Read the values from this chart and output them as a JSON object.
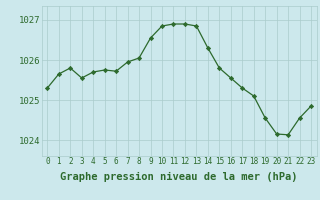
{
  "x": [
    0,
    1,
    2,
    3,
    4,
    5,
    6,
    7,
    8,
    9,
    10,
    11,
    12,
    13,
    14,
    15,
    16,
    17,
    18,
    19,
    20,
    21,
    22,
    23
  ],
  "y": [
    1025.3,
    1025.65,
    1025.8,
    1025.55,
    1025.7,
    1025.75,
    1025.72,
    1025.95,
    1026.05,
    1026.55,
    1026.85,
    1026.9,
    1026.9,
    1026.85,
    1026.3,
    1025.8,
    1025.55,
    1025.3,
    1025.1,
    1024.55,
    1024.15,
    1024.13,
    1024.55,
    1024.85
  ],
  "line_color": "#2d6a2d",
  "marker_color": "#2d6a2d",
  "bg_color": "#cce8ec",
  "grid_color": "#aacccc",
  "xlabel": "Graphe pression niveau de la mer (hPa)",
  "ylim_min": 1023.6,
  "ylim_max": 1027.35,
  "yticks": [
    1024,
    1025,
    1026,
    1027
  ],
  "xtick_labels": [
    "0",
    "1",
    "2",
    "3",
    "4",
    "5",
    "6",
    "7",
    "8",
    "9",
    "10",
    "11",
    "12",
    "13",
    "14",
    "15",
    "16",
    "17",
    "18",
    "19",
    "20",
    "21",
    "22",
    "23"
  ],
  "xlabel_fontsize": 7.5,
  "ytick_fontsize": 6.5,
  "xtick_fontsize": 5.5
}
